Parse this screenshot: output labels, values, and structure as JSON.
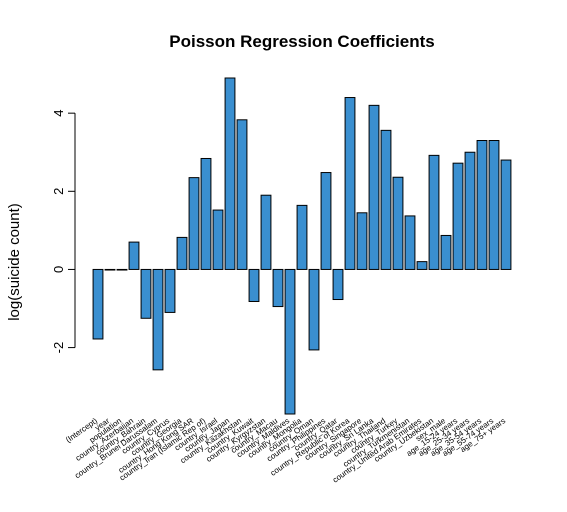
{
  "chart_data": {
    "type": "bar",
    "title": "Poisson Regression Coefficients",
    "xlabel": "",
    "ylabel": "log(suicide count)",
    "ylim": [
      -3.7,
      4.9
    ],
    "yticks": [
      -2,
      0,
      2,
      4
    ],
    "bar_color": "#3a8fd0",
    "bar_edge_color": "#000000",
    "grid": false,
    "categories": [
      "(Intercept)",
      "year",
      "population",
      "country_Azerbaijan",
      "country_Bahrain",
      "country_Brunei Darussalam",
      "country_Cyprus",
      "country_Georgia",
      "country_Hong Kong SAR",
      "country_Iran (Islamic Rep of)",
      "country_Israel",
      "country_Japan",
      "country_Kazakhstan",
      "country_Kuwait",
      "country_Kyrgyzstan",
      "country_Macau",
      "country_Maldives",
      "country_Mongolia",
      "country_Oman",
      "country_Philippines",
      "country_Qatar",
      "country_Republic of Korea",
      "country_Singapore",
      "country_Sri Lanka",
      "country_Thailand",
      "country_Turkey",
      "country_Turkmenistan",
      "country_United Arab Emirates",
      "country_Uzbekistan",
      "sex_male",
      "age_15-24 years",
      "age_25-34 years",
      "age_35-54 years",
      "age_55-74 years",
      "age_75+ years"
    ],
    "values": [
      -1.78,
      0.0,
      0.0,
      0.7,
      -1.25,
      -2.57,
      -1.1,
      0.82,
      2.35,
      2.84,
      1.52,
      4.9,
      3.83,
      -0.82,
      1.9,
      -0.95,
      -3.7,
      1.64,
      -2.06,
      2.48,
      -0.77,
      4.4,
      1.45,
      4.2,
      3.56,
      2.36,
      1.37,
      0.2,
      2.92,
      0.87,
      2.72,
      3.0,
      3.3,
      3.3,
      2.8
    ]
  }
}
